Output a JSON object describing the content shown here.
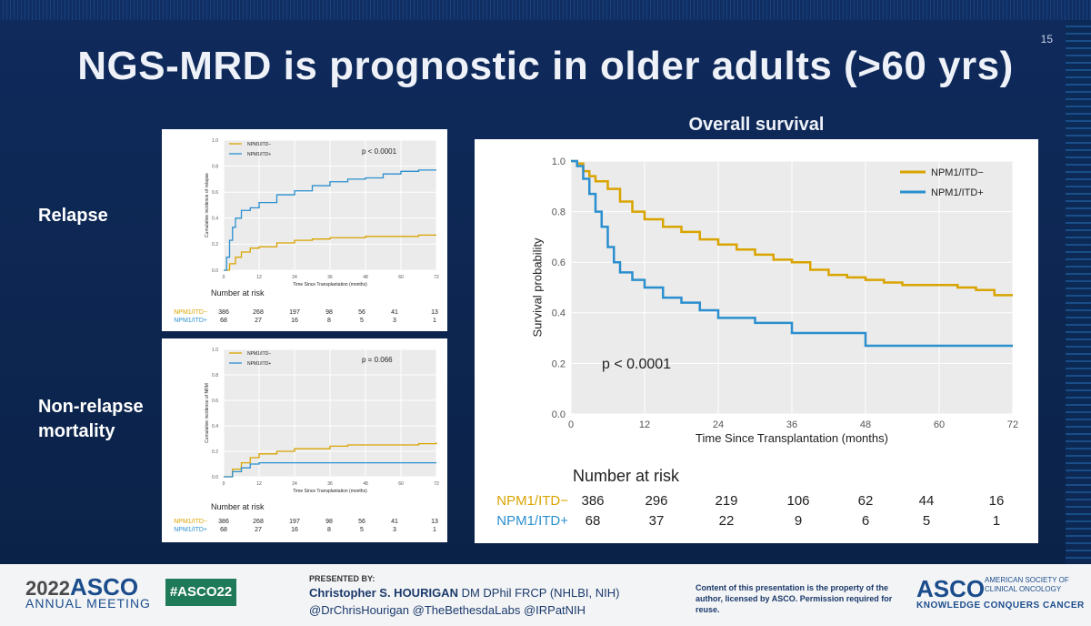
{
  "slide": {
    "number": "15",
    "title": "NGS-MRD is prognostic in older adults (>60 yrs)",
    "row_labels": [
      "Relapse",
      "Non-relapse",
      "mortality"
    ],
    "os_title": "Overall survival"
  },
  "colors": {
    "npm_neg": "#d9a400",
    "npm_pos": "#2b8fcf",
    "bg": "#0d2650"
  },
  "chart_data": [
    {
      "type": "line",
      "title": "Overall survival",
      "xlabel": "Time Since Transplantation (months)",
      "ylabel": "Survival probability",
      "xlim": [
        0,
        72
      ],
      "ylim": [
        0,
        1
      ],
      "x_ticks": [
        0,
        12,
        24,
        36,
        48,
        60,
        72
      ],
      "y_ticks": [
        "0.0",
        "0.2",
        "0.4",
        "0.6",
        "0.8",
        "1.0"
      ],
      "pvalue": "p < 0.0001",
      "legend": "top-right",
      "series": [
        {
          "name": "NPM1/ITD−",
          "key": "neg",
          "x": [
            0,
            1,
            2,
            3,
            4,
            6,
            8,
            10,
            12,
            15,
            18,
            21,
            24,
            27,
            30,
            33,
            36,
            39,
            42,
            45,
            48,
            51,
            54,
            57,
            60,
            63,
            66,
            69,
            72
          ],
          "y": [
            1.0,
            0.99,
            0.96,
            0.94,
            0.92,
            0.89,
            0.84,
            0.8,
            0.77,
            0.74,
            0.72,
            0.69,
            0.67,
            0.65,
            0.63,
            0.61,
            0.6,
            0.57,
            0.55,
            0.54,
            0.53,
            0.52,
            0.51,
            0.51,
            0.51,
            0.5,
            0.49,
            0.47,
            0.47
          ]
        },
        {
          "name": "NPM1/ITD+",
          "key": "pos",
          "x": [
            0,
            1,
            2,
            3,
            4,
            5,
            6,
            7,
            8,
            10,
            12,
            15,
            18,
            21,
            24,
            27,
            30,
            33,
            36,
            39,
            42,
            45,
            48,
            51,
            54,
            57,
            60,
            63,
            66,
            69,
            72
          ],
          "y": [
            1.0,
            0.98,
            0.93,
            0.87,
            0.8,
            0.74,
            0.66,
            0.6,
            0.56,
            0.53,
            0.5,
            0.46,
            0.44,
            0.41,
            0.38,
            0.38,
            0.36,
            0.36,
            0.32,
            0.32,
            0.32,
            0.32,
            0.27,
            0.27,
            0.27,
            0.27,
            0.27,
            0.27,
            0.27,
            0.27,
            0.27
          ]
        }
      ],
      "risk_table": {
        "title": "Number at risk",
        "rows": [
          {
            "label": "NPM1/ITD−",
            "key": "neg",
            "values": [
              "386",
              "296",
              "219",
              "106",
              "62",
              "44",
              "16"
            ]
          },
          {
            "label": "NPM1/ITD+",
            "key": "pos",
            "values": [
              "68",
              "37",
              "22",
              "9",
              "6",
              "5",
              "1"
            ]
          }
        ]
      }
    },
    {
      "type": "line",
      "title": "Relapse",
      "xlabel": "Time Since Transplantation (months)",
      "ylabel": "Cumulative incidence of relapse",
      "xlim": [
        0,
        72
      ],
      "ylim": [
        0,
        1
      ],
      "x_ticks": [
        0,
        12,
        24,
        36,
        48,
        60,
        72
      ],
      "y_ticks": [
        "0.0",
        "0.2",
        "0.4",
        "0.6",
        "0.8",
        "1.0"
      ],
      "pvalue": "p < 0.0001",
      "legend": "top-left",
      "series": [
        {
          "name": "NPM1/ITD−",
          "key": "neg",
          "x": [
            0,
            2,
            4,
            6,
            9,
            12,
            18,
            24,
            30,
            36,
            42,
            48,
            54,
            60,
            66,
            72
          ],
          "y": [
            0,
            0.05,
            0.1,
            0.14,
            0.17,
            0.18,
            0.21,
            0.23,
            0.24,
            0.25,
            0.25,
            0.26,
            0.26,
            0.26,
            0.27,
            0.27
          ]
        },
        {
          "name": "NPM1/ITD+",
          "key": "pos",
          "x": [
            0,
            1,
            2,
            3,
            4,
            6,
            9,
            12,
            18,
            24,
            30,
            36,
            42,
            48,
            54,
            60,
            66,
            72
          ],
          "y": [
            0,
            0.1,
            0.23,
            0.33,
            0.4,
            0.46,
            0.48,
            0.52,
            0.58,
            0.61,
            0.65,
            0.68,
            0.7,
            0.71,
            0.74,
            0.76,
            0.77,
            0.77
          ]
        }
      ],
      "risk_table": {
        "title": "Number at risk",
        "rows": [
          {
            "label": "NPM1/ITD−",
            "key": "neg",
            "values": [
              "386",
              "268",
              "197",
              "98",
              "56",
              "41",
              "13"
            ]
          },
          {
            "label": "NPM1/ITD+",
            "key": "pos",
            "values": [
              "68",
              "27",
              "16",
              "8",
              "5",
              "3",
              "1"
            ]
          }
        ]
      }
    },
    {
      "type": "line",
      "title": "Non-relapse mortality",
      "xlabel": "Time Since Transplantation (months)",
      "ylabel": "Cumulative incidence of NRM",
      "xlim": [
        0,
        72
      ],
      "ylim": [
        0,
        1
      ],
      "x_ticks": [
        0,
        12,
        24,
        36,
        48,
        60,
        72
      ],
      "y_ticks": [
        "0.0",
        "0.2",
        "0.4",
        "0.6",
        "0.8",
        "1.0"
      ],
      "pvalue": "p = 0.066",
      "legend": "top-left",
      "series": [
        {
          "name": "NPM1/ITD−",
          "key": "neg",
          "x": [
            0,
            3,
            6,
            9,
            12,
            18,
            24,
            30,
            36,
            42,
            48,
            54,
            60,
            66,
            72
          ],
          "y": [
            0,
            0.06,
            0.11,
            0.15,
            0.18,
            0.2,
            0.22,
            0.22,
            0.24,
            0.25,
            0.25,
            0.25,
            0.25,
            0.26,
            0.27
          ]
        },
        {
          "name": "NPM1/ITD+",
          "key": "pos",
          "x": [
            0,
            3,
            6,
            9,
            12,
            18,
            24,
            36,
            48,
            60,
            72
          ],
          "y": [
            0,
            0.04,
            0.07,
            0.1,
            0.11,
            0.11,
            0.11,
            0.11,
            0.11,
            0.11,
            0.11
          ]
        }
      ],
      "risk_table": {
        "title": "Number at risk",
        "rows": [
          {
            "label": "NPM1/ITD−",
            "key": "neg",
            "values": [
              "386",
              "268",
              "197",
              "98",
              "56",
              "41",
              "13"
            ]
          },
          {
            "label": "NPM1/ITD+",
            "key": "pos",
            "values": [
              "68",
              "27",
              "16",
              "8",
              "5",
              "3",
              "1"
            ]
          }
        ]
      }
    }
  ],
  "footer": {
    "year": "2022",
    "asco": "ASCO",
    "annual": "ANNUAL MEETING",
    "hashtag": "#ASCO22",
    "presented_by": "PRESENTED BY:",
    "presenter_name": "Christopher S. HOURIGAN",
    "presenter_creds": " DM DPhil FRCP (NHLBI, NIH)",
    "handles": "@DrChrisHourigan @TheBethesdaLabs @IRPatNIH",
    "legal": "Content of this presentation is the property of the author, licensed by ASCO. Permission required for reuse.",
    "logo": "ASCO",
    "society": "AMERICAN SOCIETY OF CLINICAL ONCOLOGY",
    "tagline": "KNOWLEDGE CONQUERS CANCER"
  }
}
